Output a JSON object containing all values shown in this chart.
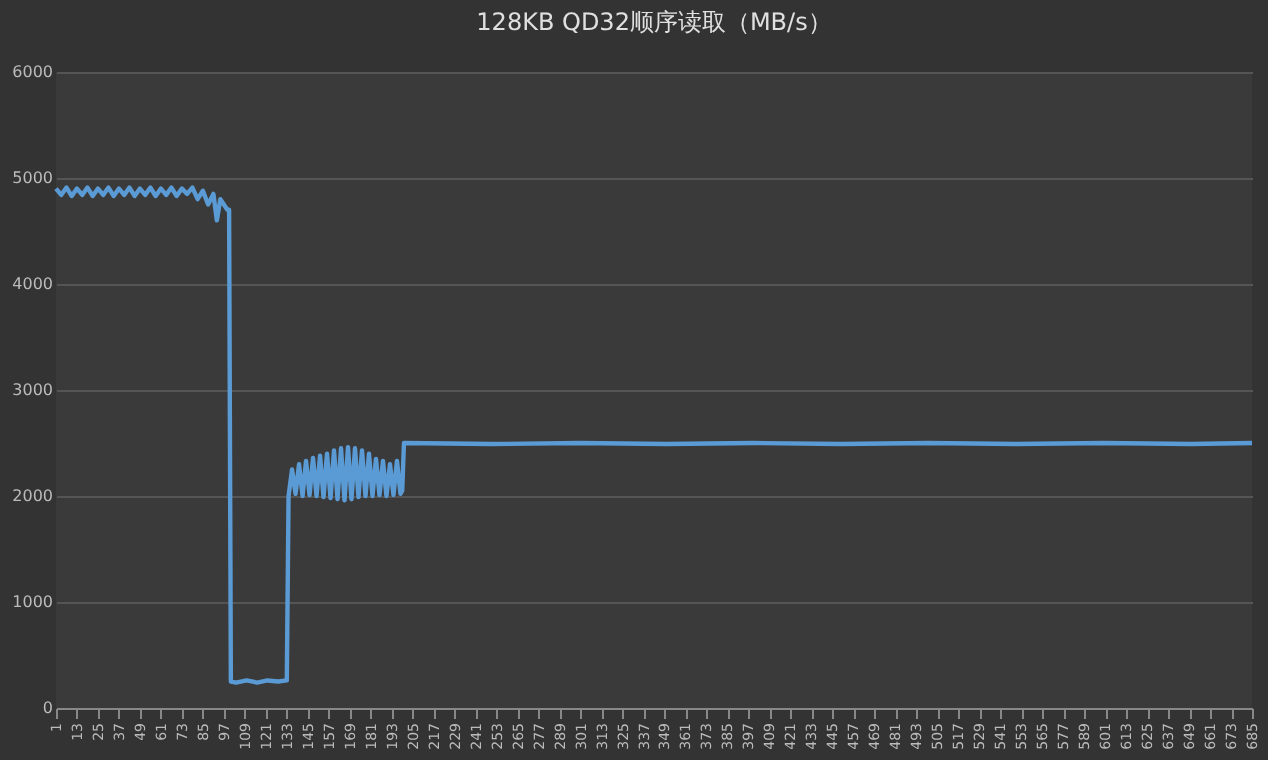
{
  "chart_data": {
    "type": "line",
    "title": "128KB QD32顺序读取（MB/s）",
    "series": [
      {
        "color": "#5b9bd5",
        "x": [
          1,
          4,
          7,
          10,
          13,
          16,
          19,
          22,
          25,
          28,
          31,
          34,
          37,
          40,
          43,
          46,
          49,
          52,
          55,
          58,
          61,
          64,
          67,
          70,
          73,
          76,
          79,
          82,
          85,
          88,
          91,
          93,
          95,
          97,
          99,
          100,
          101,
          104,
          110,
          116,
          122,
          128,
          133,
          134,
          136,
          138,
          140,
          142,
          144,
          146,
          148,
          150,
          152,
          154,
          156,
          158,
          160,
          162,
          164,
          166,
          168,
          170,
          172,
          174,
          176,
          178,
          180,
          182,
          184,
          186,
          188,
          190,
          192,
          194,
          196,
          198,
          199,
          200,
          250,
          300,
          350,
          400,
          450,
          500,
          550,
          600,
          650,
          685
        ],
        "values": [
          4900,
          4840,
          4910,
          4830,
          4900,
          4840,
          4910,
          4830,
          4900,
          4840,
          4910,
          4830,
          4900,
          4840,
          4910,
          4830,
          4900,
          4840,
          4910,
          4830,
          4900,
          4840,
          4910,
          4830,
          4900,
          4850,
          4910,
          4800,
          4880,
          4750,
          4850,
          4600,
          4800,
          4750,
          4700,
          4700,
          250,
          240,
          260,
          240,
          260,
          250,
          260,
          2000,
          2250,
          2020,
          2300,
          2000,
          2330,
          2010,
          2360,
          2000,
          2380,
          1990,
          2400,
          1980,
          2430,
          1970,
          2450,
          1960,
          2460,
          1970,
          2450,
          1990,
          2430,
          2000,
          2400,
          2000,
          2350,
          2010,
          2330,
          2000,
          2300,
          2010,
          2330,
          2020,
          2050,
          2500,
          2490,
          2500,
          2490,
          2500,
          2490,
          2500,
          2490,
          2500,
          2490,
          2500
        ]
      }
    ],
    "xlim": [
      1,
      685
    ],
    "xticks": [
      1,
      13,
      25,
      37,
      49,
      61,
      73,
      85,
      97,
      109,
      121,
      133,
      145,
      157,
      169,
      181,
      193,
      205,
      217,
      229,
      241,
      253,
      265,
      277,
      289,
      301,
      313,
      325,
      337,
      349,
      361,
      373,
      385,
      397,
      409,
      421,
      433,
      445,
      457,
      469,
      481,
      493,
      505,
      517,
      529,
      541,
      553,
      565,
      577,
      589,
      601,
      613,
      625,
      637,
      649,
      661,
      673,
      685
    ],
    "ylim": [
      0,
      6000
    ],
    "yticks": [
      0,
      1000,
      2000,
      3000,
      4000,
      5000,
      6000
    ],
    "grid": "y",
    "marker": "none",
    "line_style": "solid"
  }
}
